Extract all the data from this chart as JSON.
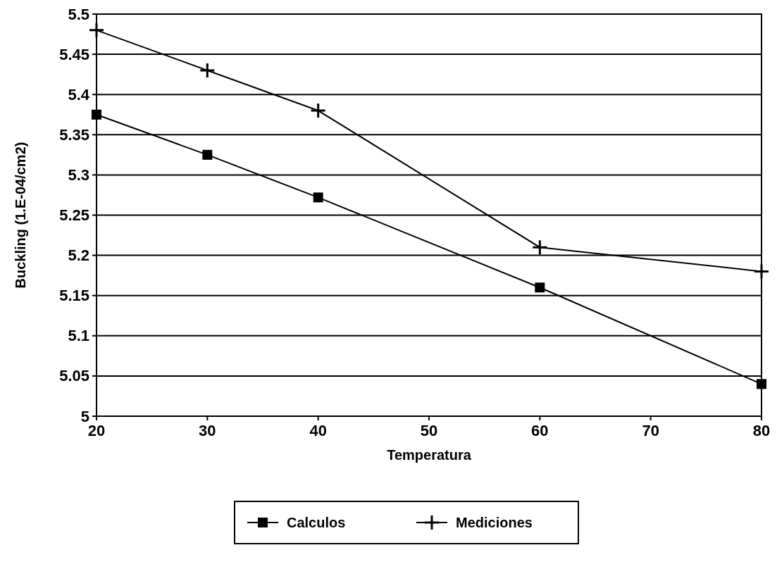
{
  "chart_data": {
    "type": "line",
    "xlabel": "Temperatura",
    "ylabel": "Buckling (1.E-04/cm2)",
    "x": [
      20,
      30,
      40,
      60,
      80
    ],
    "series": [
      {
        "name": "Calculos",
        "color": "#000000",
        "marker": "square",
        "values": [
          5.375,
          5.325,
          5.272,
          5.16,
          5.04
        ]
      },
      {
        "name": "Mediciones",
        "color": "#000000",
        "marker": "cross",
        "values": [
          5.48,
          5.43,
          5.38,
          5.21,
          5.18
        ]
      }
    ],
    "xlim": [
      20,
      80
    ],
    "xticks": [
      20,
      30,
      40,
      50,
      60,
      70,
      80
    ],
    "ylim": [
      5,
      5.5
    ],
    "yticks": [
      5,
      5.05,
      5.1,
      5.15,
      5.2,
      5.25,
      5.3,
      5.35,
      5.4,
      5.45,
      5.5
    ],
    "grid": "y",
    "legend": "bottom",
    "line_style": "solid"
  }
}
